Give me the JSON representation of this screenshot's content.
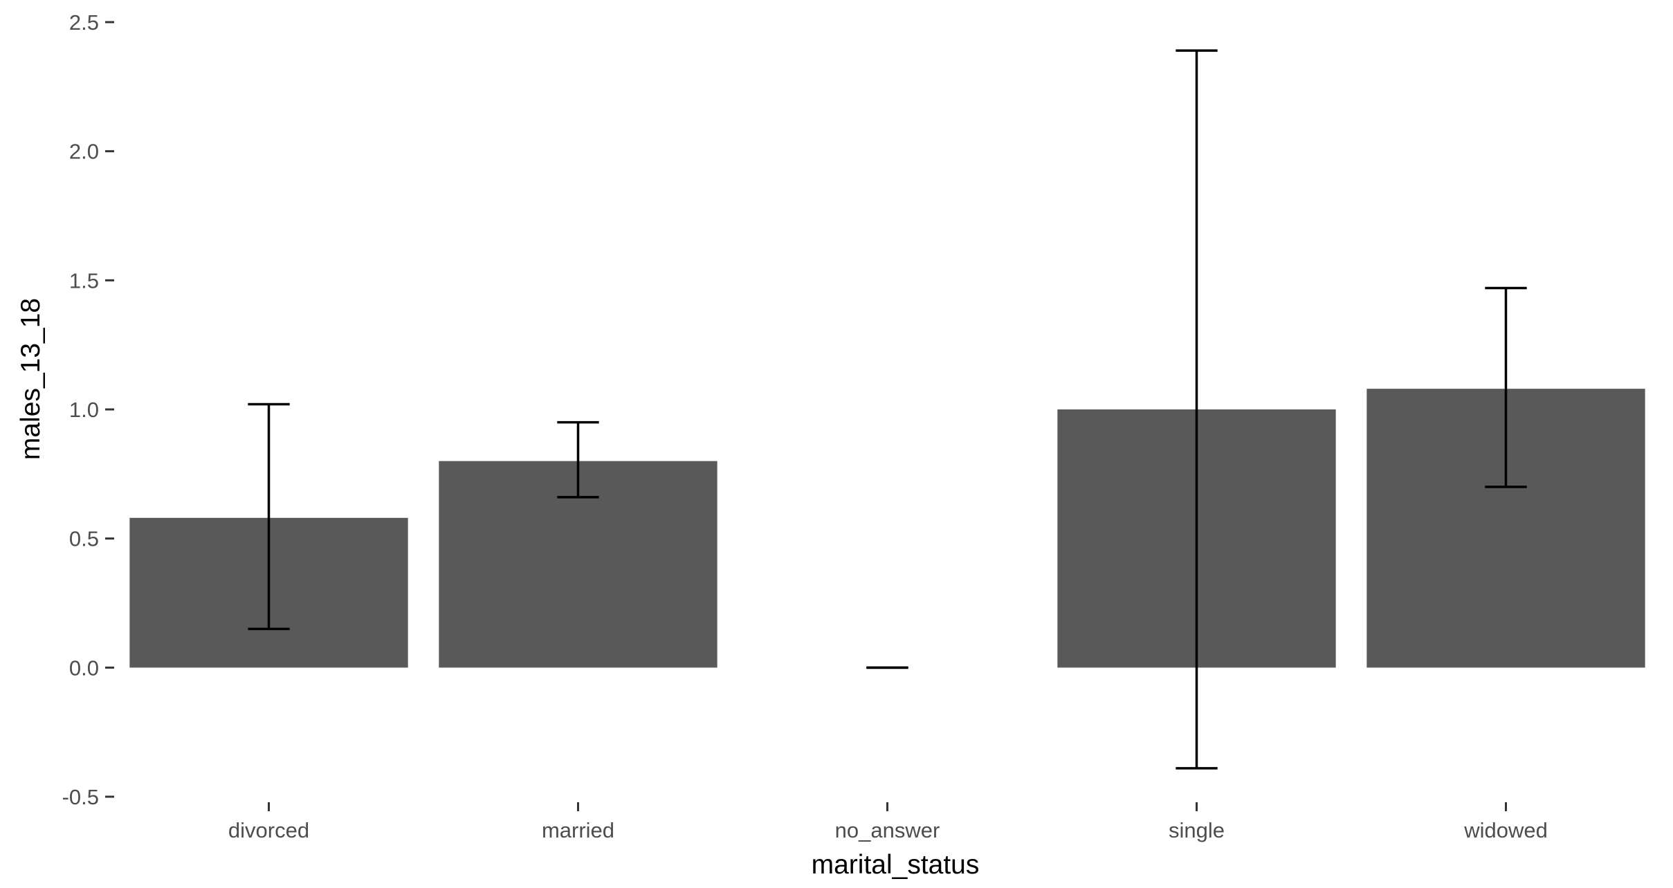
{
  "chart_data": {
    "type": "bar",
    "title": "",
    "xlabel": "marital_status",
    "ylabel": "males_13_18",
    "categories": [
      "divorced",
      "married",
      "no_answer",
      "single",
      "widowed"
    ],
    "values": [
      0.58,
      0.8,
      0.0,
      1.0,
      1.08
    ],
    "error_low": [
      0.15,
      0.66,
      0.0,
      -0.39,
      0.7
    ],
    "error_high": [
      1.02,
      0.95,
      0.0,
      2.39,
      1.47
    ],
    "ylim": [
      -0.5,
      2.5
    ],
    "yticks": [
      -0.5,
      0.0,
      0.5,
      1.0,
      1.5,
      2.0,
      2.5
    ],
    "ytick_labels": [
      "-0.5",
      "0.0",
      "0.5",
      "1.0",
      "1.5",
      "2.0",
      "2.5"
    ],
    "grid": false,
    "legend": "none",
    "bar_color": "#595959",
    "error_color": "#000000"
  }
}
